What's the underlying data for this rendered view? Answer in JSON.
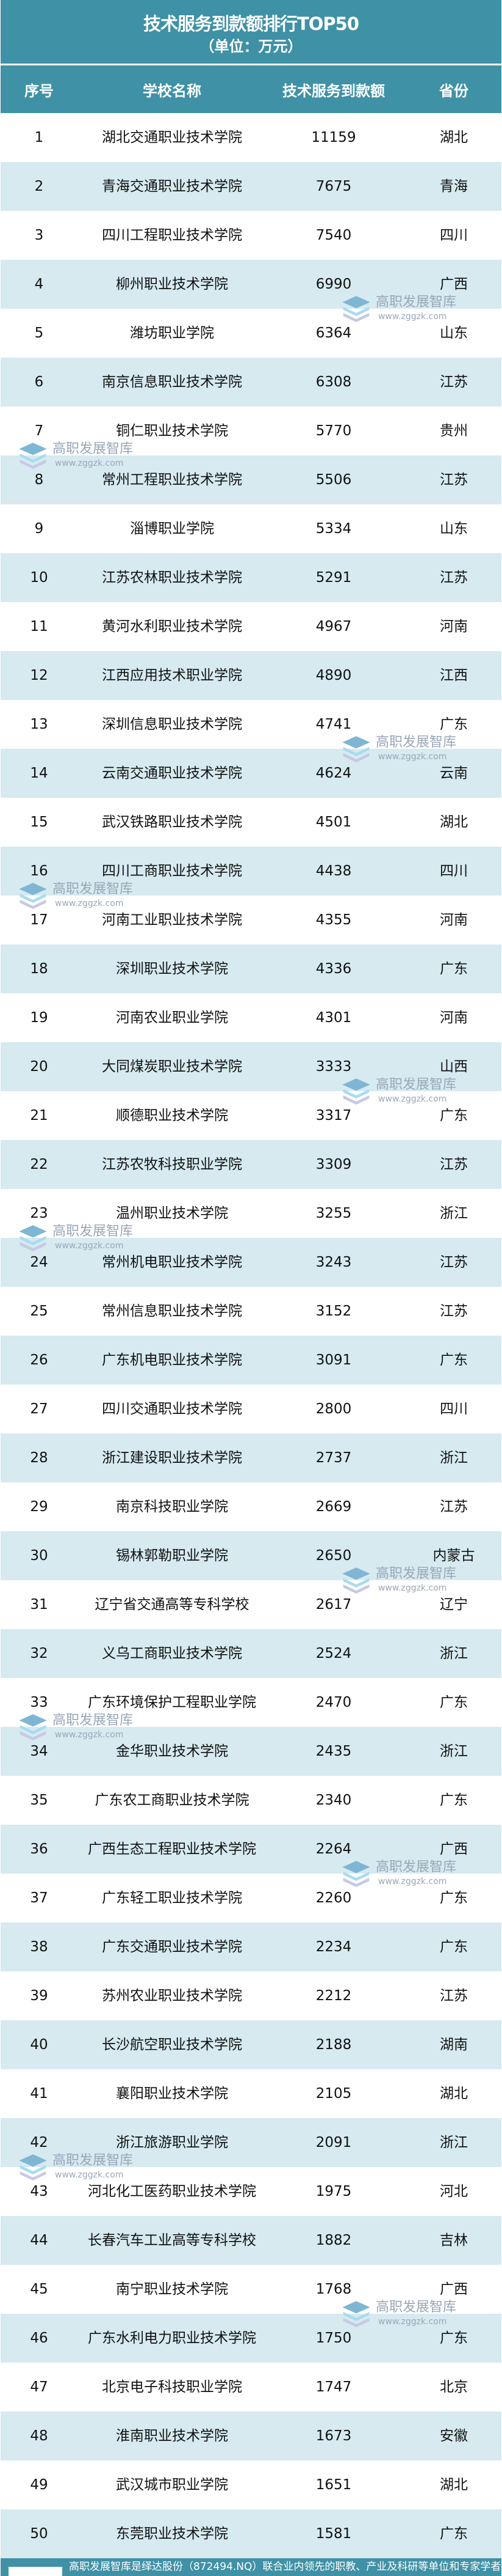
{
  "title": "技术服务到款额排行TOP50",
  "subtitle": "（单位：万元）",
  "columns": [
    "序号",
    "学校名称",
    "技术服务到款额",
    "省份"
  ],
  "colors": {
    "header_bg": "#3f91a6",
    "stripe": "#d6eaf0",
    "text": "#111111"
  },
  "rows": [
    [
      "1",
      "湖北交通职业技术学院",
      "11159",
      "湖北"
    ],
    [
      "2",
      "青海交通职业技术学院",
      "7675",
      "青海"
    ],
    [
      "3",
      "四川工程职业技术学院",
      "7540",
      "四川"
    ],
    [
      "4",
      "柳州职业技术学院",
      "6990",
      "广西"
    ],
    [
      "5",
      "潍坊职业学院",
      "6364",
      "山东"
    ],
    [
      "6",
      "南京信息职业技术学院",
      "6308",
      "江苏"
    ],
    [
      "7",
      "铜仁职业技术学院",
      "5770",
      "贵州"
    ],
    [
      "8",
      "常州工程职业技术学院",
      "5506",
      "江苏"
    ],
    [
      "9",
      "淄博职业学院",
      "5334",
      "山东"
    ],
    [
      "10",
      "江苏农林职业技术学院",
      "5291",
      "江苏"
    ],
    [
      "11",
      "黄河水利职业技术学院",
      "4967",
      "河南"
    ],
    [
      "12",
      "江西应用技术职业学院",
      "4890",
      "江西"
    ],
    [
      "13",
      "深圳信息职业技术学院",
      "4741",
      "广东"
    ],
    [
      "14",
      "云南交通职业技术学院",
      "4624",
      "云南"
    ],
    [
      "15",
      "武汉铁路职业技术学院",
      "4501",
      "湖北"
    ],
    [
      "16",
      "四川工商职业技术学院",
      "4438",
      "四川"
    ],
    [
      "17",
      "河南工业职业技术学院",
      "4355",
      "河南"
    ],
    [
      "18",
      "深圳职业技术学院",
      "4336",
      "广东"
    ],
    [
      "19",
      "河南农业职业学院",
      "4301",
      "河南"
    ],
    [
      "20",
      "大同煤炭职业技术学院",
      "3333",
      "山西"
    ],
    [
      "21",
      "顺德职业技术学院",
      "3317",
      "广东"
    ],
    [
      "22",
      "江苏农牧科技职业学院",
      "3309",
      "江苏"
    ],
    [
      "23",
      "温州职业技术学院",
      "3255",
      "浙江"
    ],
    [
      "24",
      "常州机电职业技术学院",
      "3243",
      "江苏"
    ],
    [
      "25",
      "常州信息职业技术学院",
      "3152",
      "江苏"
    ],
    [
      "26",
      "广东机电职业技术学院",
      "3091",
      "广东"
    ],
    [
      "27",
      "四川交通职业技术学院",
      "2800",
      "四川"
    ],
    [
      "28",
      "浙江建设职业技术学院",
      "2737",
      "浙江"
    ],
    [
      "29",
      "南京科技职业学院",
      "2669",
      "江苏"
    ],
    [
      "30",
      "锡林郭勒职业学院",
      "2650",
      "内蒙古"
    ],
    [
      "31",
      "辽宁省交通高等专科学校",
      "2617",
      "辽宁"
    ],
    [
      "32",
      "义乌工商职业技术学院",
      "2524",
      "浙江"
    ],
    [
      "33",
      "广东环境保护工程职业学院",
      "2470",
      "广东"
    ],
    [
      "34",
      "金华职业技术学院",
      "2435",
      "浙江"
    ],
    [
      "35",
      "广东农工商职业技术学院",
      "2340",
      "广东"
    ],
    [
      "36",
      "广西生态工程职业技术学院",
      "2264",
      "广西"
    ],
    [
      "37",
      "广东轻工职业技术学院",
      "2260",
      "广东"
    ],
    [
      "38",
      "广东交通职业技术学院",
      "2234",
      "广东"
    ],
    [
      "39",
      "苏州农业职业技术学院",
      "2212",
      "江苏"
    ],
    [
      "40",
      "长沙航空职业技术学院",
      "2188",
      "湖南"
    ],
    [
      "41",
      "襄阳职业技术学院",
      "2105",
      "湖北"
    ],
    [
      "42",
      "浙江旅游职业学院",
      "2091",
      "浙江"
    ],
    [
      "43",
      "河北化工医药职业技术学院",
      "1975",
      "河北"
    ],
    [
      "44",
      "长春汽车工业高等专科学校",
      "1882",
      "吉林"
    ],
    [
      "45",
      "南宁职业技术学院",
      "1768",
      "广西"
    ],
    [
      "46",
      "广东水利电力职业技术学院",
      "1750",
      "广东"
    ],
    [
      "47",
      "北京电子科技职业学院",
      "1747",
      "北京"
    ],
    [
      "48",
      "淮南职业技术学院",
      "1673",
      "安徽"
    ],
    [
      "49",
      "武汉城市职业学院",
      "1651",
      "湖北"
    ],
    [
      "50",
      "东莞职业技术学院",
      "1581",
      "广东"
    ]
  ],
  "watermark": {
    "name": "高职发展智库",
    "url": "www.zggzk.com"
  },
  "footer": {
    "text": "高职发展智库是绎达股份（872494.NQ）联合业内领先的职教、产业及科研等单位和专家学者"
  }
}
